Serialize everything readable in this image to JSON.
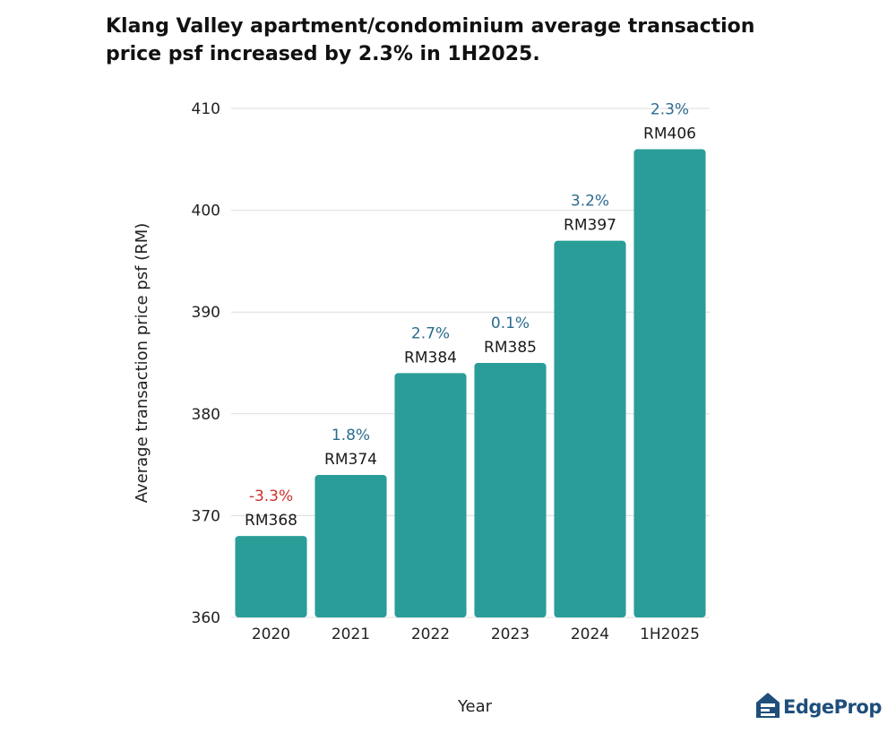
{
  "chart_data": {
    "type": "bar",
    "title": "Klang Valley apartment/condominium average transaction price psf increased by 2.3% in 1H2025.",
    "xlabel": "Year",
    "ylabel": "Average transaction price psf (RM)",
    "ylim": [
      360,
      410
    ],
    "yticks": [
      360,
      370,
      380,
      390,
      400,
      410
    ],
    "grid": true,
    "categories": [
      "2020",
      "2021",
      "2022",
      "2023",
      "2024",
      "1H2025"
    ],
    "values": [
      368,
      374,
      384,
      385,
      397,
      406
    ],
    "value_labels": [
      "RM368",
      "RM374",
      "RM384",
      "RM385",
      "RM397",
      "RM406"
    ],
    "change_labels": [
      "-3.3%",
      "1.8%",
      "2.7%",
      "0.1%",
      "3.2%",
      "2.3%"
    ],
    "colors": {
      "bar": "#2a9d98",
      "grid": "#dcdcdc",
      "positive_change": "#2c6b8f",
      "negative_change": "#d0312d"
    }
  },
  "brand": {
    "logo_text": "EdgeProp",
    "logo_icon": "house-icon"
  }
}
